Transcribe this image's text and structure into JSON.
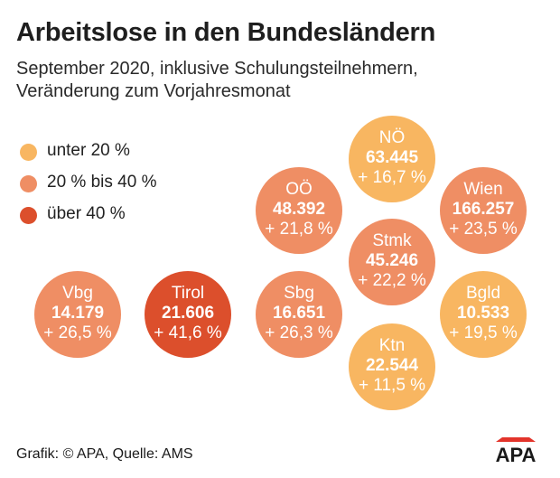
{
  "title": "Arbeitslose in den Bundesländern",
  "subtitle_line1": "September 2020, inklusive Schulungsteilnehmern,",
  "subtitle_line2": "Veränderung zum Vorjahresmonat",
  "legend": [
    {
      "label": "unter 20 %",
      "color": "#f8b661"
    },
    {
      "label": "20 % bis 40 %",
      "color": "#ef8e64"
    },
    {
      "label": "über 40 %",
      "color": "#dc4f2c"
    }
  ],
  "footer": "Grafik: © APA, Quelle: AMS",
  "logo_text": "APA",
  "chart_data": {
    "type": "bubble-tile-map",
    "title": "Arbeitslose in den Bundesländern",
    "subtitle": "September 2020, inklusive Schulungsteilnehmern, Veränderung zum Vorjahresmonat",
    "categories": [
      "unter 20 %",
      "20 % bis 40 %",
      "über 40 %"
    ],
    "regions": [
      {
        "name": "NÖ",
        "value_label": "63.445",
        "value": 63445,
        "change_label": "+ 16,7 %",
        "change": 16.7,
        "category": "unter 20 %",
        "color": "#f8b661"
      },
      {
        "name": "OÖ",
        "value_label": "48.392",
        "value": 48392,
        "change_label": "+ 21,8 %",
        "change": 21.8,
        "category": "20 % bis 40 %",
        "color": "#ef8e64"
      },
      {
        "name": "Wien",
        "value_label": "166.257",
        "value": 166257,
        "change_label": "+ 23,5 %",
        "change": 23.5,
        "category": "20 % bis 40 %",
        "color": "#ef8e64"
      },
      {
        "name": "Stmk",
        "value_label": "45.246",
        "value": 45246,
        "change_label": "+ 22,2 %",
        "change": 22.2,
        "category": "20 % bis 40 %",
        "color": "#ef8e64"
      },
      {
        "name": "Vbg",
        "value_label": "14.179",
        "value": 14179,
        "change_label": "+ 26,5 %",
        "change": 26.5,
        "category": "20 % bis 40 %",
        "color": "#ef8e64"
      },
      {
        "name": "Tirol",
        "value_label": "21.606",
        "value": 21606,
        "change_label": "+ 41,6 %",
        "change": 41.6,
        "category": "über 40 %",
        "color": "#dc4f2c"
      },
      {
        "name": "Sbg",
        "value_label": "16.651",
        "value": 16651,
        "change_label": "+ 26,3 %",
        "change": 26.3,
        "category": "20 % bis 40 %",
        "color": "#ef8e64"
      },
      {
        "name": "Bgld",
        "value_label": "10.533",
        "value": 10533,
        "change_label": "+ 19,5 %",
        "change": 19.5,
        "category": "unter 20 %",
        "color": "#f8b661"
      },
      {
        "name": "Ktn",
        "value_label": "22.544",
        "value": 22544,
        "change_label": "+ 11,5 %",
        "change": 11.5,
        "category": "unter 20 %",
        "color": "#f8b661"
      }
    ]
  }
}
